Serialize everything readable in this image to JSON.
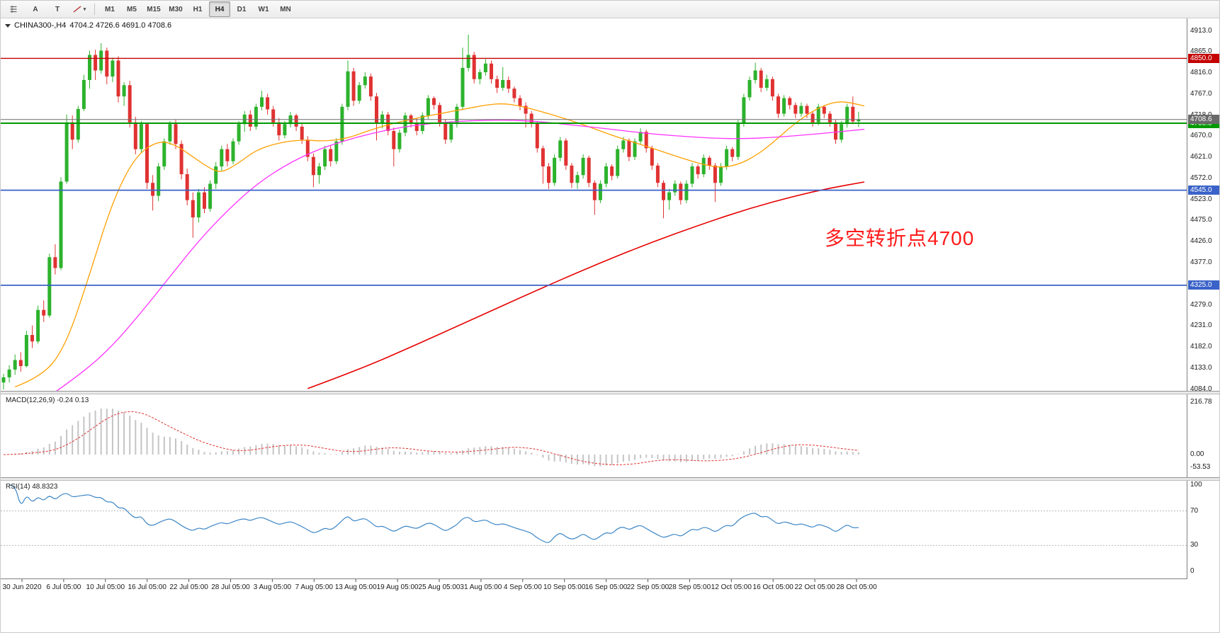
{
  "toolbar": {
    "tools": [
      {
        "name": "chart-list",
        "icon": "grid"
      },
      {
        "name": "label-tool",
        "label": "A"
      },
      {
        "name": "text-tool",
        "label": "T"
      },
      {
        "name": "trendline-tool",
        "icon": "trendline",
        "caret": "▾"
      }
    ],
    "timeframes": [
      "M1",
      "M5",
      "M15",
      "M30",
      "H1",
      "H4",
      "D1",
      "W1",
      "MN"
    ],
    "active_timeframe": "H4"
  },
  "chart_data": {
    "type": "candlestick",
    "title": "CHINA300-,H4",
    "ohlc_text": "4704.2 4726.6 4691.0 4708.6",
    "symbol": "CHINA300",
    "timeframe": "H4",
    "ylim": [
      4084,
      4913
    ],
    "price_ticks": [
      4913,
      4865,
      4816,
      4767,
      4718,
      4670,
      4621,
      4572,
      4523,
      4475,
      4426,
      4377,
      4328,
      4279,
      4231,
      4182,
      4133,
      4084
    ],
    "time_labels": [
      "30 Jun 2020",
      "6 Jul 05:00",
      "10 Jul 05:00",
      "16 Jul 05:00",
      "22 Jul 05:00",
      "28 Jul 05:00",
      "3 Aug 05:00",
      "7 Aug 05:00",
      "13 Aug 05:00",
      "19 Aug 05:00",
      "25 Aug 05:00",
      "31 Aug 05:00",
      "4 Sep 05:00",
      "10 Sep 05:00",
      "16 Sep 05:00",
      "22 Sep 05:00",
      "28 Sep 05:00",
      "12 Oct 05:00",
      "16 Oct 05:00",
      "22 Oct 05:00",
      "28 Oct 05:00"
    ],
    "levels": [
      {
        "price": 4850,
        "label": "4850.0",
        "color": "#c40000",
        "lw": 1.4
      },
      {
        "price": 4700,
        "label": "4700.0",
        "color": "#009900",
        "lw": 2
      },
      {
        "price": 4545,
        "label": "4545.0",
        "color": "#3a62c8",
        "lw": 1.8
      },
      {
        "price": 4325,
        "label": "4325.0",
        "color": "#3a62c8",
        "lw": 1.8
      }
    ],
    "current_price": {
      "value": 4708.6,
      "label": "4708.6",
      "color": "#6a6a6a"
    },
    "up_color": "#2db22d",
    "down_color": "#e03232",
    "candles": [
      [
        4100,
        4120,
        4084,
        4112
      ],
      [
        4112,
        4140,
        4100,
        4130
      ],
      [
        4130,
        4165,
        4118,
        4152
      ],
      [
        4152,
        4170,
        4125,
        4138
      ],
      [
        4138,
        4220,
        4135,
        4210
      ],
      [
        4210,
        4232,
        4180,
        4195
      ],
      [
        4195,
        4278,
        4190,
        4268
      ],
      [
        4268,
        4290,
        4240,
        4255
      ],
      [
        4255,
        4398,
        4250,
        4390
      ],
      [
        4390,
        4420,
        4350,
        4365
      ],
      [
        4365,
        4575,
        4360,
        4565
      ],
      [
        4565,
        4720,
        4560,
        4702
      ],
      [
        4702,
        4718,
        4640,
        4662
      ],
      [
        4662,
        4740,
        4655,
        4733
      ],
      [
        4733,
        4812,
        4728,
        4800
      ],
      [
        4800,
        4868,
        4780,
        4858
      ],
      [
        4858,
        4870,
        4800,
        4822
      ],
      [
        4822,
        4885,
        4815,
        4868
      ],
      [
        4868,
        4875,
        4790,
        4808
      ],
      [
        4808,
        4852,
        4795,
        4845
      ],
      [
        4845,
        4855,
        4748,
        4762
      ],
      [
        4762,
        4795,
        4740,
        4788
      ],
      [
        4788,
        4798,
        4690,
        4702
      ],
      [
        4702,
        4715,
        4628,
        4640
      ],
      [
        4640,
        4705,
        4632,
        4698
      ],
      [
        4698,
        4700,
        4548,
        4562
      ],
      [
        4562,
        4580,
        4498,
        4532
      ],
      [
        4532,
        4608,
        4520,
        4600
      ],
      [
        4600,
        4665,
        4592,
        4658
      ],
      [
        4658,
        4705,
        4650,
        4698
      ],
      [
        4698,
        4708,
        4640,
        4652
      ],
      [
        4652,
        4660,
        4570,
        4582
      ],
      [
        4582,
        4595,
        4510,
        4522
      ],
      [
        4522,
        4540,
        4435,
        4482
      ],
      [
        4482,
        4548,
        4470,
        4540
      ],
      [
        4540,
        4552,
        4492,
        4502
      ],
      [
        4502,
        4568,
        4495,
        4560
      ],
      [
        4560,
        4610,
        4548,
        4600
      ],
      [
        4600,
        4648,
        4590,
        4640
      ],
      [
        4640,
        4652,
        4600,
        4612
      ],
      [
        4612,
        4665,
        4605,
        4658
      ],
      [
        4658,
        4705,
        4650,
        4698
      ],
      [
        4698,
        4728,
        4680,
        4720
      ],
      [
        4720,
        4730,
        4682,
        4692
      ],
      [
        4692,
        4745,
        4685,
        4738
      ],
      [
        4738,
        4775,
        4730,
        4760
      ],
      [
        4760,
        4768,
        4720,
        4732
      ],
      [
        4732,
        4740,
        4692,
        4702
      ],
      [
        4702,
        4712,
        4660,
        4672
      ],
      [
        4672,
        4705,
        4665,
        4698
      ],
      [
        4698,
        4726,
        4690,
        4718
      ],
      [
        4718,
        4722,
        4682,
        4692
      ],
      [
        4692,
        4700,
        4652,
        4662
      ],
      [
        4662,
        4670,
        4612,
        4622
      ],
      [
        4622,
        4630,
        4552,
        4580
      ],
      [
        4580,
        4608,
        4560,
        4600
      ],
      [
        4600,
        4648,
        4592,
        4640
      ],
      [
        4640,
        4650,
        4600,
        4612
      ],
      [
        4612,
        4665,
        4605,
        4658
      ],
      [
        4658,
        4745,
        4650,
        4738
      ],
      [
        4738,
        4845,
        4730,
        4820
      ],
      [
        4820,
        4828,
        4740,
        4752
      ],
      [
        4752,
        4795,
        4745,
        4788
      ],
      [
        4788,
        4818,
        4780,
        4808
      ],
      [
        4808,
        4815,
        4752,
        4762
      ],
      [
        4762,
        4770,
        4660,
        4700
      ],
      [
        4700,
        4728,
        4688,
        4720
      ],
      [
        4720,
        4726,
        4672,
        4682
      ],
      [
        4682,
        4690,
        4600,
        4640
      ],
      [
        4640,
        4685,
        4632,
        4678
      ],
      [
        4678,
        4725,
        4670,
        4718
      ],
      [
        4718,
        4722,
        4690,
        4700
      ],
      [
        4700,
        4712,
        4672,
        4682
      ],
      [
        4682,
        4725,
        4675,
        4718
      ],
      [
        4718,
        4765,
        4710,
        4758
      ],
      [
        4758,
        4762,
        4732,
        4742
      ],
      [
        4742,
        4748,
        4692,
        4702
      ],
      [
        4702,
        4710,
        4652,
        4662
      ],
      [
        4662,
        4705,
        4655,
        4698
      ],
      [
        4698,
        4745,
        4690,
        4738
      ],
      [
        4738,
        4875,
        4730,
        4828
      ],
      [
        4828,
        4905,
        4820,
        4858
      ],
      [
        4858,
        4865,
        4792,
        4802
      ],
      [
        4802,
        4825,
        4790,
        4818
      ],
      [
        4818,
        4848,
        4810,
        4838
      ],
      [
        4838,
        4845,
        4792,
        4802
      ],
      [
        4802,
        4810,
        4770,
        4782
      ],
      [
        4782,
        4830,
        4775,
        4800
      ],
      [
        4800,
        4808,
        4770,
        4780
      ],
      [
        4780,
        4785,
        4748,
        4758
      ],
      [
        4758,
        4765,
        4730,
        4740
      ],
      [
        4740,
        4748,
        4690,
        4722
      ],
      [
        4722,
        4728,
        4690,
        4700
      ],
      [
        4700,
        4705,
        4632,
        4642
      ],
      [
        4642,
        4648,
        4560,
        4600
      ],
      [
        4600,
        4608,
        4548,
        4562
      ],
      [
        4562,
        4628,
        4555,
        4620
      ],
      [
        4620,
        4668,
        4612,
        4660
      ],
      [
        4660,
        4665,
        4592,
        4602
      ],
      [
        4602,
        4608,
        4550,
        4562
      ],
      [
        4562,
        4588,
        4548,
        4580
      ],
      [
        4580,
        4628,
        4572,
        4620
      ],
      [
        4620,
        4625,
        4552,
        4562
      ],
      [
        4562,
        4568,
        4488,
        4522
      ],
      [
        4522,
        4568,
        4515,
        4560
      ],
      [
        4560,
        4608,
        4552,
        4600
      ],
      [
        4600,
        4605,
        4568,
        4578
      ],
      [
        4578,
        4648,
        4572,
        4640
      ],
      [
        4640,
        4668,
        4632,
        4660
      ],
      [
        4660,
        4665,
        4612,
        4622
      ],
      [
        4622,
        4665,
        4615,
        4658
      ],
      [
        4658,
        4688,
        4650,
        4680
      ],
      [
        4680,
        4685,
        4632,
        4642
      ],
      [
        4642,
        4648,
        4592,
        4602
      ],
      [
        4602,
        4608,
        4552,
        4562
      ],
      [
        4562,
        4568,
        4480,
        4522
      ],
      [
        4522,
        4548,
        4500,
        4540
      ],
      [
        4540,
        4568,
        4532,
        4560
      ],
      [
        4560,
        4565,
        4512,
        4522
      ],
      [
        4522,
        4568,
        4515,
        4560
      ],
      [
        4560,
        4608,
        4552,
        4600
      ],
      [
        4600,
        4605,
        4572,
        4582
      ],
      [
        4582,
        4628,
        4575,
        4620
      ],
      [
        4620,
        4625,
        4592,
        4602
      ],
      [
        4602,
        4608,
        4518,
        4562
      ],
      [
        4562,
        4608,
        4555,
        4600
      ],
      [
        4600,
        4648,
        4592,
        4640
      ],
      [
        4640,
        4645,
        4612,
        4622
      ],
      [
        4622,
        4708,
        4615,
        4700
      ],
      [
        4700,
        4768,
        4692,
        4760
      ],
      [
        4760,
        4808,
        4752,
        4800
      ],
      [
        4800,
        4840,
        4792,
        4822
      ],
      [
        4822,
        4828,
        4772,
        4782
      ],
      [
        4782,
        4812,
        4775,
        4802
      ],
      [
        4802,
        4808,
        4752,
        4762
      ],
      [
        4762,
        4768,
        4712,
        4722
      ],
      [
        4722,
        4765,
        4715,
        4758
      ],
      [
        4758,
        4762,
        4732,
        4742
      ],
      [
        4742,
        4748,
        4712,
        4722
      ],
      [
        4722,
        4748,
        4715,
        4740
      ],
      [
        4740,
        4745,
        4712,
        4722
      ],
      [
        4722,
        4728,
        4692,
        4702
      ],
      [
        4702,
        4745,
        4695,
        4738
      ],
      [
        4738,
        4742,
        4712,
        4722
      ],
      [
        4722,
        4728,
        4692,
        4702
      ],
      [
        4702,
        4708,
        4652,
        4662
      ],
      [
        4662,
        4705,
        4655,
        4698
      ],
      [
        4698,
        4745,
        4690,
        4738
      ],
      [
        4738,
        4762,
        4698,
        4704
      ],
      [
        4704.2,
        4726.6,
        4691.0,
        4708.6
      ]
    ],
    "ma_lines": [
      {
        "name": "ma-fast-orange",
        "color": "#ffa000",
        "w": 1.3,
        "points": [
          [
            2,
            4090
          ],
          [
            7,
            4115
          ],
          [
            11,
            4190
          ],
          [
            15,
            4350
          ],
          [
            19,
            4520
          ],
          [
            23,
            4625
          ],
          [
            27,
            4660
          ],
          [
            30,
            4650
          ],
          [
            33,
            4622
          ],
          [
            36,
            4595
          ],
          [
            38,
            4585
          ],
          [
            41,
            4608
          ],
          [
            44,
            4638
          ],
          [
            48,
            4655
          ],
          [
            52,
            4662
          ],
          [
            56,
            4658
          ],
          [
            60,
            4665
          ],
          [
            64,
            4685
          ],
          [
            68,
            4700
          ],
          [
            72,
            4712
          ],
          [
            76,
            4722
          ],
          [
            80,
            4732
          ],
          [
            84,
            4742
          ],
          [
            87,
            4746
          ],
          [
            90,
            4740
          ],
          [
            94,
            4726
          ],
          [
            98,
            4710
          ],
          [
            102,
            4692
          ],
          [
            106,
            4672
          ],
          [
            110,
            4655
          ],
          [
            114,
            4638
          ],
          [
            118,
            4620
          ],
          [
            122,
            4604
          ],
          [
            125,
            4597
          ],
          [
            128,
            4604
          ],
          [
            131,
            4624
          ],
          [
            134,
            4654
          ],
          [
            137,
            4690
          ],
          [
            140,
            4720
          ],
          [
            143,
            4742
          ],
          [
            146,
            4752
          ],
          [
            150,
            4740
          ]
        ]
      },
      {
        "name": "ma-mid-magenta",
        "color": "#ff33ff",
        "w": 1.3,
        "points": [
          [
            9,
            4078
          ],
          [
            14,
            4125
          ],
          [
            19,
            4185
          ],
          [
            24,
            4262
          ],
          [
            29,
            4345
          ],
          [
            34,
            4428
          ],
          [
            39,
            4498
          ],
          [
            44,
            4558
          ],
          [
            49,
            4602
          ],
          [
            54,
            4635
          ],
          [
            59,
            4658
          ],
          [
            64,
            4676
          ],
          [
            69,
            4690
          ],
          [
            74,
            4699
          ],
          [
            79,
            4704
          ],
          [
            84,
            4707
          ],
          [
            89,
            4707
          ],
          [
            94,
            4703
          ],
          [
            99,
            4696
          ],
          [
            104,
            4689
          ],
          [
            109,
            4681
          ],
          [
            114,
            4674
          ],
          [
            119,
            4669
          ],
          [
            124,
            4665
          ],
          [
            129,
            4664
          ],
          [
            134,
            4667
          ],
          [
            139,
            4672
          ],
          [
            144,
            4678
          ],
          [
            150,
            4686
          ]
        ]
      },
      {
        "name": "ma-slow-red",
        "color": "#e60000",
        "w": 1.6,
        "points": [
          [
            53,
            4086
          ],
          [
            62,
            4130
          ],
          [
            72,
            4188
          ],
          [
            82,
            4248
          ],
          [
            92,
            4308
          ],
          [
            102,
            4366
          ],
          [
            112,
            4420
          ],
          [
            122,
            4468
          ],
          [
            130,
            4503
          ],
          [
            138,
            4532
          ],
          [
            144,
            4550
          ],
          [
            150,
            4564
          ]
        ]
      }
    ],
    "macd": {
      "label": "MACD(12,26,9)",
      "values_text": "-0.24 0.13",
      "ticks": [
        216.78,
        0,
        -53.53
      ],
      "tick_labels": [
        "216.78",
        "0.00",
        "-53.53"
      ],
      "ylim": [
        -90,
        230
      ],
      "hist_color": "#c4c4c4",
      "signal_color": "#e03232"
    },
    "rsi": {
      "label": "RSI(14)",
      "value_text": "48.8323",
      "ticks": [
        100,
        70,
        30,
        0
      ],
      "levels": [
        70,
        30
      ],
      "ylim": [
        0,
        100
      ],
      "color": "#3d86c6"
    },
    "annotation": {
      "text": "多空转折点4700",
      "color": "#ff1a1a"
    }
  }
}
